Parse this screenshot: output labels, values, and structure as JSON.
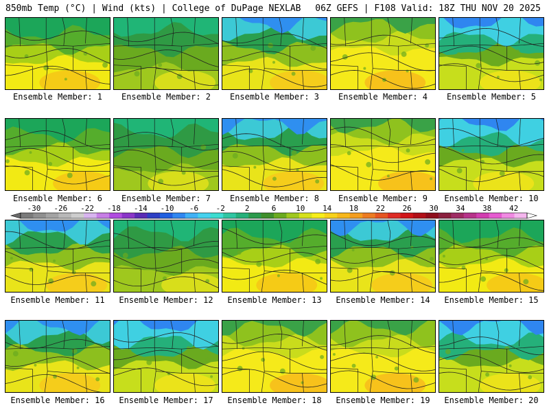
{
  "header": {
    "left_title": "850mb Temp (°C) | Wind (kts) | College of DuPage NEXLAB",
    "right_title": "06Z GEFS | F108 Valid: 18Z THU NOV 20 2025"
  },
  "panel_label_prefix": "Ensemble Member: ",
  "members": [
    {
      "label": "Ensemble Member: 1",
      "style": "warm-south"
    },
    {
      "label": "Ensemble Member: 2",
      "style": "green"
    },
    {
      "label": "Ensemble Member: 3",
      "style": "cold-north"
    },
    {
      "label": "Ensemble Member: 4",
      "style": "yellow"
    },
    {
      "label": "Ensemble Member: 5",
      "style": "cold-east"
    },
    {
      "label": "Ensemble Member: 6",
      "style": "warm-south"
    },
    {
      "label": "Ensemble Member: 7",
      "style": "green"
    },
    {
      "label": "Ensemble Member: 8",
      "style": "cold-north"
    },
    {
      "label": "Ensemble Member: 9",
      "style": "yellow"
    },
    {
      "label": "Ensemble Member: 10",
      "style": "cold-east"
    },
    {
      "label": "Ensemble Member: 11",
      "style": "cold-north"
    },
    {
      "label": "Ensemble Member: 12",
      "style": "green"
    },
    {
      "label": "Ensemble Member: 13",
      "style": "warm-south"
    },
    {
      "label": "Ensemble Member: 14",
      "style": "cold-north"
    },
    {
      "label": "Ensemble Member: 15",
      "style": "warm-south"
    },
    {
      "label": "Ensemble Member: 16",
      "style": "cold-north"
    },
    {
      "label": "Ensemble Member: 17",
      "style": "cold-east"
    },
    {
      "label": "Ensemble Member: 18",
      "style": "yellow"
    },
    {
      "label": "Ensemble Member: 19",
      "style": "yellow"
    },
    {
      "label": "Ensemble Member: 20",
      "style": "cold-east"
    }
  ],
  "colorbar": {
    "labels": [
      "-30",
      "-26",
      "-22",
      "-18",
      "-14",
      "-10",
      "-6",
      "-2",
      "2",
      "6",
      "10",
      "14",
      "18",
      "22",
      "26",
      "30",
      "34",
      "38",
      "42"
    ],
    "colors": [
      "#7a7a7a",
      "#8f8f8f",
      "#a3a3a3",
      "#b8b8b8",
      "#cdcdcd",
      "#d8b4ef",
      "#c77ee6",
      "#b04be0",
      "#8a35c8",
      "#5a2bb5",
      "#2d3fc4",
      "#1f5fe0",
      "#2f86f0",
      "#3fb1f5",
      "#45d1ee",
      "#3cddd0",
      "#2fc6a2",
      "#25b07a",
      "#2b9a4c",
      "#3f8f2a",
      "#6aaa1f",
      "#9fc81e",
      "#d6e11b",
      "#f7ee1a",
      "#f8d21a",
      "#f7b71b",
      "#f39d1e",
      "#ec7b22",
      "#e55522",
      "#dd2b24",
      "#d01418",
      "#b10f17",
      "#8e0d1b",
      "#8a1f3d",
      "#9f2b63",
      "#b7338a",
      "#d23db0",
      "#e65bd0",
      "#f089e2",
      "#f5b6ee"
    ],
    "arrow_color": "#ffffff"
  }
}
